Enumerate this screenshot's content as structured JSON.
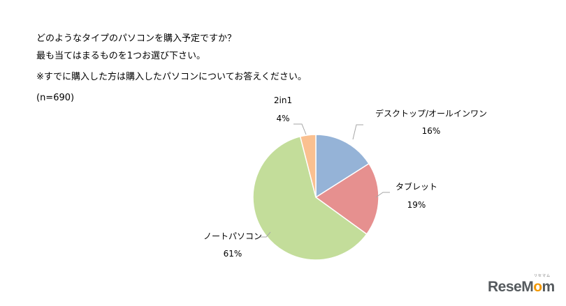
{
  "question": {
    "line1": "どのようなタイプのパソコンを購入予定ですか？",
    "line2": "最も当てはまるものを1つお選び下さい。",
    "line3": "※すでに購入した方は購入したパソコンについてお答えください。",
    "sample_size": "(n=690)"
  },
  "chart_data": {
    "type": "pie",
    "title": "どのようなタイプのパソコンを購入予定ですか？",
    "slices": [
      {
        "label": "デスクトップ/オールインワン",
        "value": 16,
        "value_label": "16%",
        "color": "#95b3d7"
      },
      {
        "label": "タブレット",
        "value": 19,
        "value_label": "19%",
        "color": "#e6908f"
      },
      {
        "label": "ノートパソコン",
        "value": 61,
        "value_label": "61%",
        "color": "#c3dd9a"
      },
      {
        "label": "2in1",
        "value": 4,
        "value_label": "4%",
        "color": "#fac090"
      }
    ],
    "start_angle_deg": 0,
    "direction": "clockwise",
    "legend": "none"
  },
  "watermark": {
    "brand_prefix": "ResеM",
    "brand_o": "o",
    "brand_suffix": "m",
    "ruby": "リセマム"
  }
}
